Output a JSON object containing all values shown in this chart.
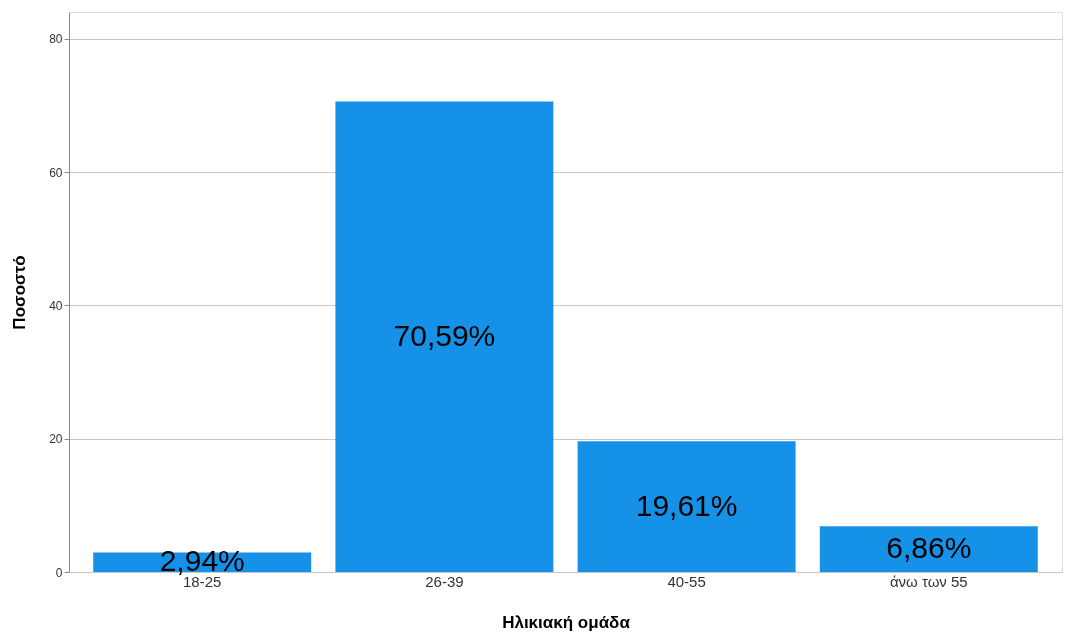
{
  "chart_data": {
    "type": "bar",
    "xlabel": "Ηλικιακή ομάδα",
    "ylabel": "Ποσοστό",
    "categories": [
      "18-25",
      "26-39",
      "40-55",
      "άνω των 55"
    ],
    "values": [
      2.94,
      70.59,
      19.61,
      6.86
    ],
    "value_labels": [
      "2,94%",
      "70,59%",
      "19,61%",
      "6,86%"
    ],
    "color": "#1591e8",
    "ylim": [
      0,
      84
    ],
    "yticks": [
      0,
      20,
      40,
      60,
      80
    ],
    "grid": "y"
  }
}
